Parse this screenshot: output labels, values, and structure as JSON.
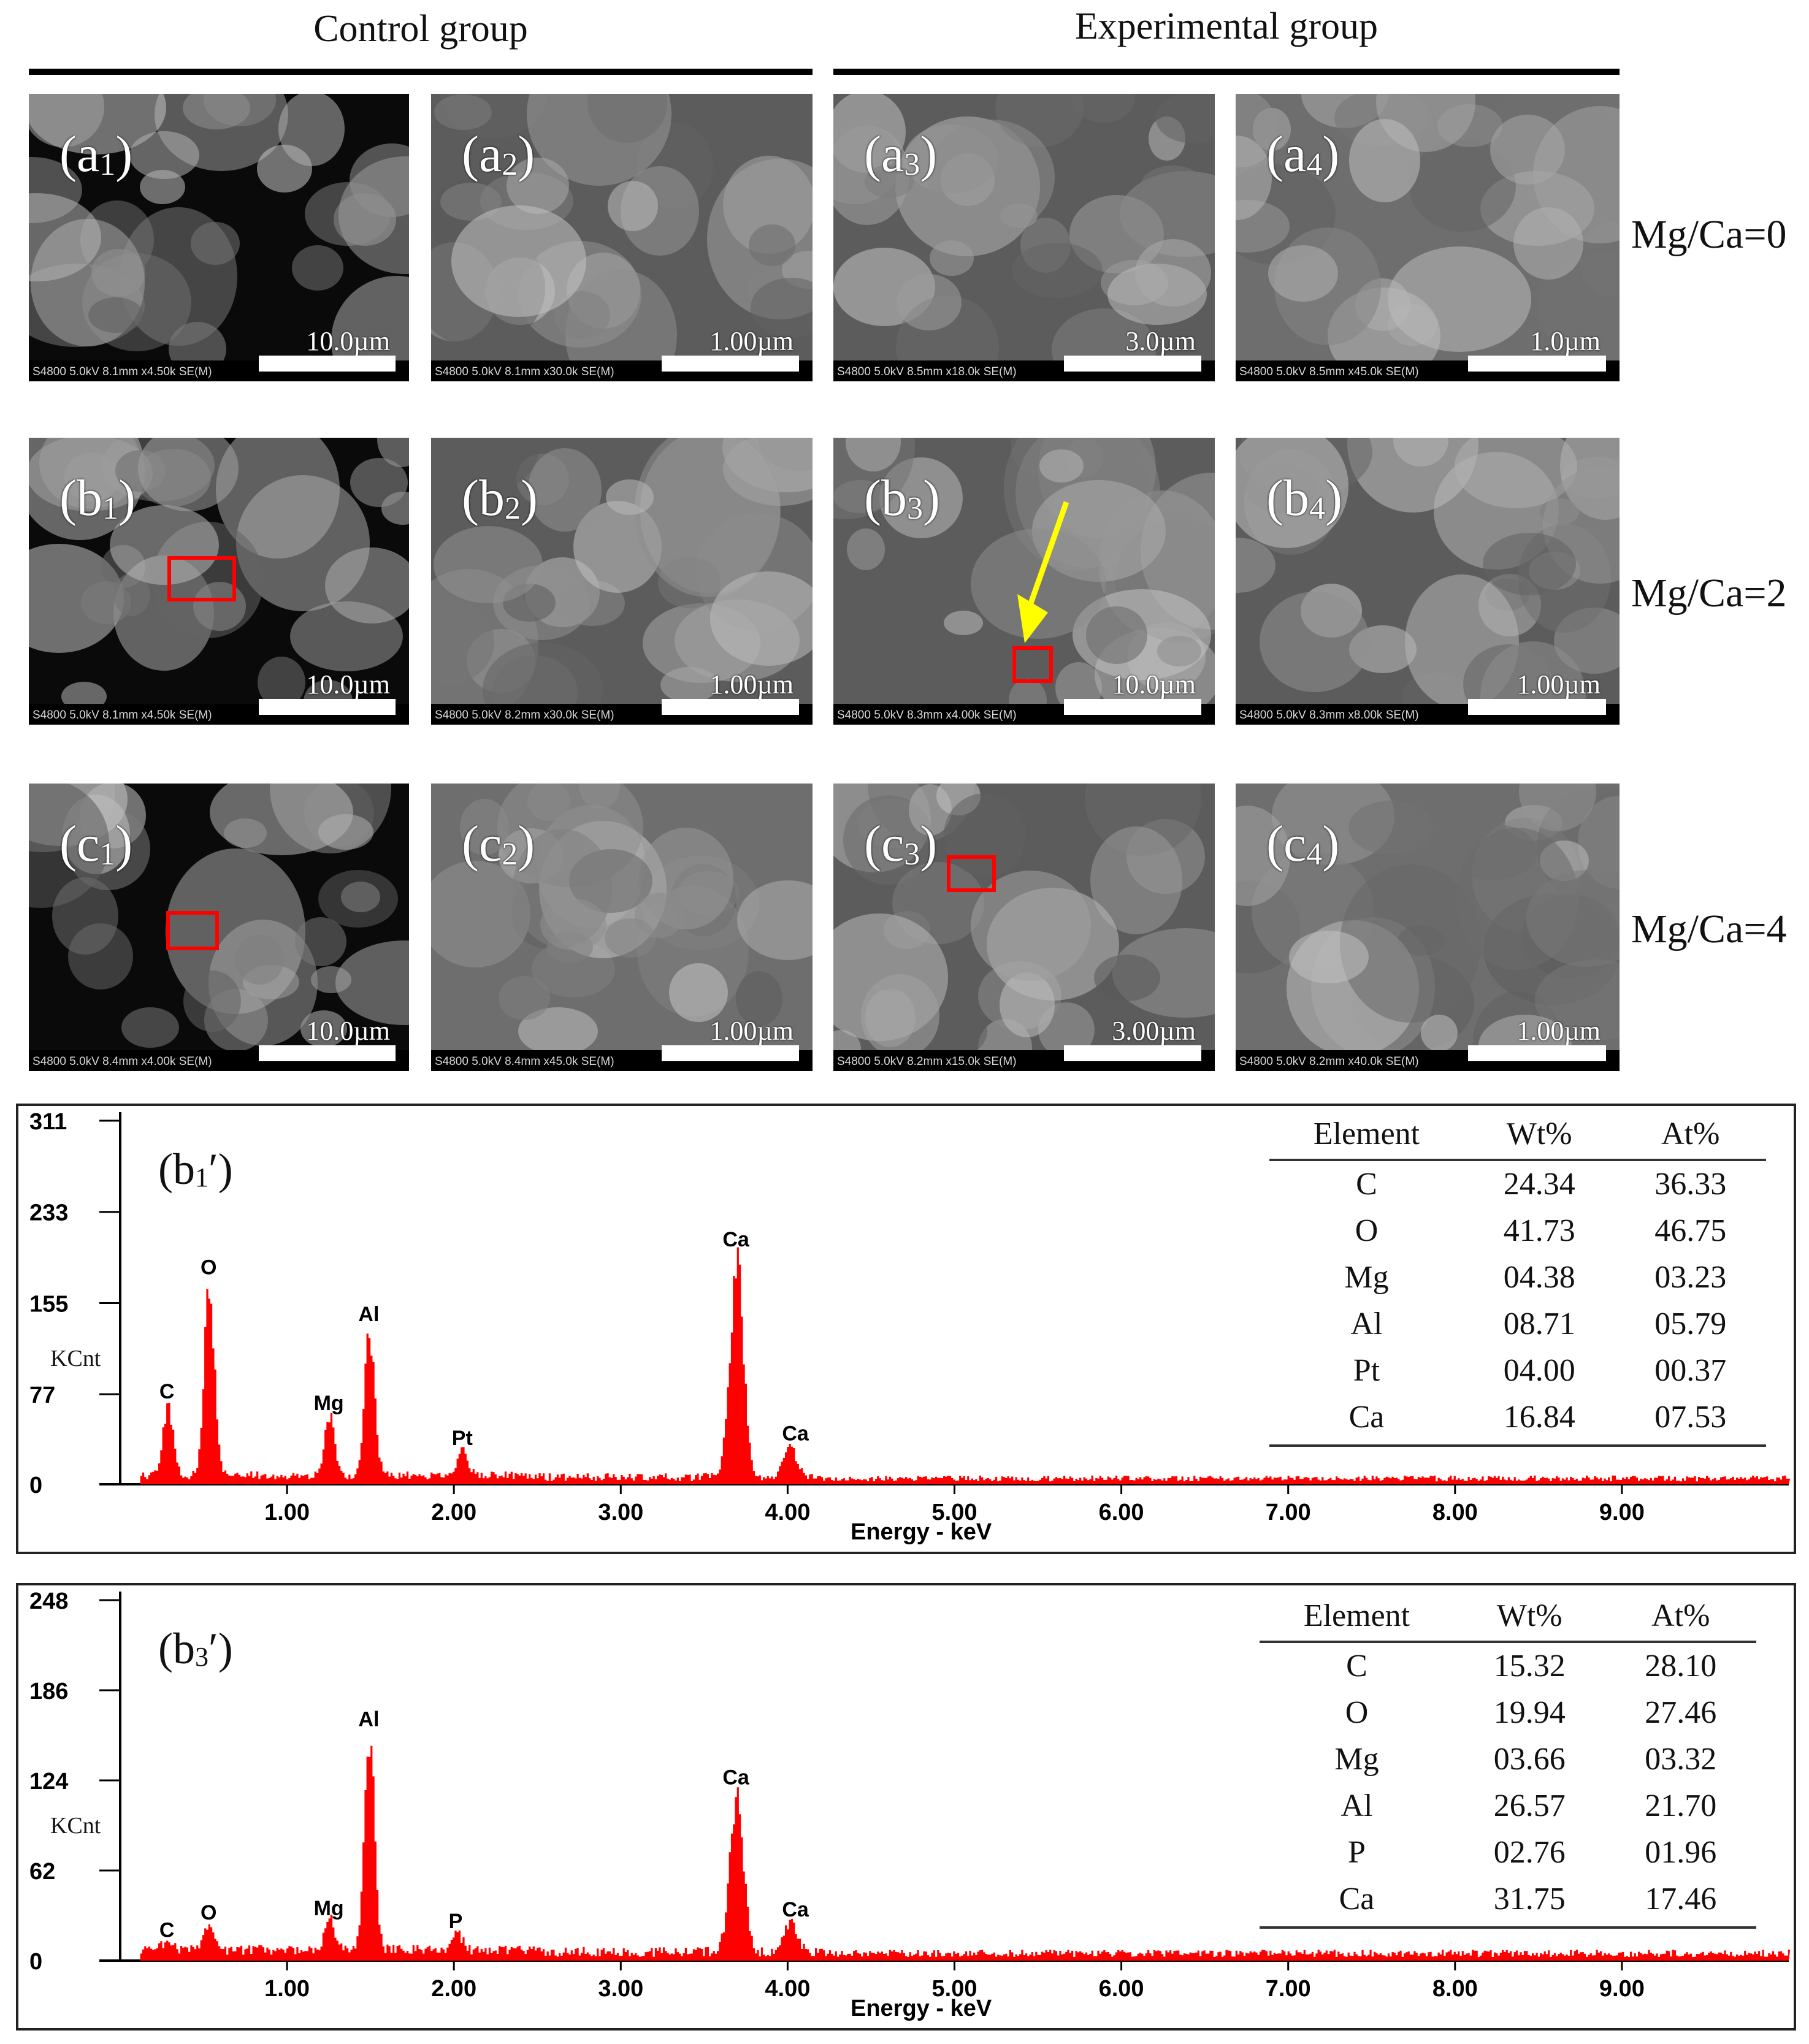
{
  "figure": {
    "headers": {
      "control": "Control group",
      "experimental": "Experimental group"
    },
    "ratio_labels": [
      "Mg/Ca=0",
      "Mg/Ca=2",
      "Mg/Ca=4"
    ],
    "panels": [
      {
        "id": "a1",
        "letter": "a",
        "sub": "1",
        "scale": "10.0µm",
        "info": "S4800 5.0kV 8.1mm x4.50k SE(M)",
        "tone": "dark"
      },
      {
        "id": "a2",
        "letter": "a",
        "sub": "2",
        "scale": "1.00µm",
        "info": "S4800 5.0kV 8.1mm x30.0k SE(M)",
        "tone": "mid"
      },
      {
        "id": "a3",
        "letter": "a",
        "sub": "3",
        "scale": "3.0µm",
        "info": "S4800 5.0kV 8.5mm x18.0k SE(M)",
        "tone": "mid"
      },
      {
        "id": "a4",
        "letter": "a",
        "sub": "4",
        "scale": "1.0µm",
        "info": "S4800 5.0kV 8.5mm x45.0k SE(M)",
        "tone": "light"
      },
      {
        "id": "b1",
        "letter": "b",
        "sub": "1",
        "scale": "10.0µm",
        "info": "S4800 5.0kV 8.1mm x4.50k SE(M)",
        "tone": "dark"
      },
      {
        "id": "b2",
        "letter": "b",
        "sub": "2",
        "scale": "1.00µm",
        "info": "S4800 5.0kV 8.2mm x30.0k SE(M)",
        "tone": "mid"
      },
      {
        "id": "b3",
        "letter": "b",
        "sub": "3",
        "scale": "10.0µm",
        "info": "S4800 5.0kV 8.3mm x4.00k SE(M)",
        "tone": "mid"
      },
      {
        "id": "b4",
        "letter": "b",
        "sub": "4",
        "scale": "1.00µm",
        "info": "S4800 5.0kV 8.3mm x8.00k SE(M)",
        "tone": "mid"
      },
      {
        "id": "c1",
        "letter": "c",
        "sub": "1",
        "scale": "10.0µm",
        "info": "S4800 5.0kV 8.4mm x4.00k SE(M)",
        "tone": "dark"
      },
      {
        "id": "c2",
        "letter": "c",
        "sub": "2",
        "scale": "1.00µm",
        "info": "S4800 5.0kV 8.4mm x45.0k SE(M)",
        "tone": "light"
      },
      {
        "id": "c3",
        "letter": "c",
        "sub": "3",
        "scale": "3.00µm",
        "info": "S4800 5.0kV 8.2mm x15.0k SE(M)",
        "tone": "mid"
      },
      {
        "id": "c4",
        "letter": "c",
        "sub": "4",
        "scale": "1.00µm",
        "info": "S4800 5.0kV 8.2mm x40.0k SE(M)",
        "tone": "light"
      }
    ],
    "colors": {
      "spectrum": "#ff0000",
      "roi_box": "#ff0000",
      "arrow": "#ffff00"
    }
  },
  "chart_data": [
    {
      "type": "bar",
      "title": "(b1′)",
      "label_letter": "b",
      "label_sub": "1",
      "xlabel": "Energy - keV",
      "ylabel": "KCnt",
      "xlim": [
        0,
        10
      ],
      "ylim": [
        0,
        311
      ],
      "yticks": [
        0,
        77,
        155,
        233,
        311
      ],
      "xticks": [
        "1.00",
        "2.00",
        "3.00",
        "4.00",
        "5.00",
        "6.00",
        "7.00",
        "8.00",
        "9.00"
      ],
      "peaks": [
        {
          "element": "C",
          "energy": 0.28,
          "counts": 62
        },
        {
          "element": "O",
          "energy": 0.53,
          "counts": 168
        },
        {
          "element": "Mg",
          "energy": 1.25,
          "counts": 52
        },
        {
          "element": "Al",
          "energy": 1.49,
          "counts": 128
        },
        {
          "element": "Pt",
          "energy": 2.05,
          "counts": 22
        },
        {
          "element": "Ca",
          "energy": 3.69,
          "counts": 192
        },
        {
          "element": "Ca",
          "energy": 4.01,
          "counts": 26
        }
      ],
      "table": {
        "headers": [
          "Element",
          "Wt%",
          "At%"
        ],
        "rows": [
          [
            "C",
            "24.34",
            "36.33"
          ],
          [
            "O",
            "41.73",
            "46.75"
          ],
          [
            "Mg",
            "04.38",
            "03.23"
          ],
          [
            "Al",
            "08.71",
            "05.79"
          ],
          [
            "Pt",
            "04.00",
            "00.37"
          ],
          [
            "Ca",
            "16.84",
            "07.53"
          ]
        ]
      }
    },
    {
      "type": "bar",
      "title": "(b3′)",
      "label_letter": "b",
      "label_sub": "3",
      "xlabel": "Energy - keV",
      "ylabel": "KCnt",
      "xlim": [
        0,
        10
      ],
      "ylim": [
        0,
        248
      ],
      "yticks": [
        0,
        62,
        124,
        186,
        248
      ],
      "xticks": [
        "1.00",
        "2.00",
        "3.00",
        "4.00",
        "5.00",
        "6.00",
        "7.00",
        "8.00",
        "9.00"
      ],
      "peaks": [
        {
          "element": "C",
          "energy": 0.28,
          "counts": 7
        },
        {
          "element": "O",
          "energy": 0.53,
          "counts": 19
        },
        {
          "element": "Mg",
          "energy": 1.25,
          "counts": 22
        },
        {
          "element": "Al",
          "energy": 1.49,
          "counts": 152
        },
        {
          "element": "P",
          "energy": 2.01,
          "counts": 13
        },
        {
          "element": "Ca",
          "energy": 3.69,
          "counts": 112
        },
        {
          "element": "Ca",
          "energy": 4.01,
          "counts": 21
        }
      ],
      "table": {
        "headers": [
          "Element",
          "Wt%",
          "At%"
        ],
        "rows": [
          [
            "C",
            "15.32",
            "28.10"
          ],
          [
            "O",
            "19.94",
            "27.46"
          ],
          [
            "Mg",
            "03.66",
            "03.32"
          ],
          [
            "Al",
            "26.57",
            "21.70"
          ],
          [
            "P",
            "02.76",
            "01.96"
          ],
          [
            "Ca",
            "31.75",
            "17.46"
          ]
        ]
      }
    }
  ]
}
